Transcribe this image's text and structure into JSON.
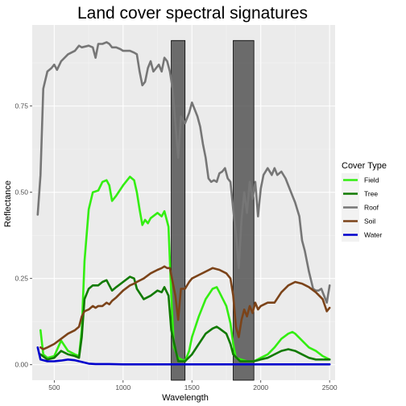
{
  "chart_data": {
    "type": "line",
    "title": "Land cover spectral signatures",
    "xlabel": "Wavelength",
    "ylabel": "Reflectance",
    "xlim": [
      340,
      2540
    ],
    "ylim": [
      -0.045,
      0.985
    ],
    "x_ticks": [
      500,
      1000,
      1500,
      2000,
      2500
    ],
    "y_ticks": [
      0.0,
      0.25,
      0.5,
      0.75
    ],
    "y_tick_labels": [
      "0.00",
      "0.25",
      "0.50",
      "0.75"
    ],
    "grid": true,
    "background": "#ebebeb",
    "legend": {
      "title": "Cover Type",
      "position": "right"
    },
    "shaded_regions": [
      {
        "x_start": 1350,
        "x_end": 1450,
        "y_top": 0.94
      },
      {
        "x_start": 1800,
        "x_end": 1950,
        "y_top": 0.94
      }
    ],
    "series": [
      {
        "name": "Field",
        "color": "#33ee11",
        "points": [
          [
            400,
            0.1
          ],
          [
            420,
            0.03
          ],
          [
            450,
            0.02
          ],
          [
            500,
            0.025
          ],
          [
            550,
            0.07
          ],
          [
            600,
            0.04
          ],
          [
            650,
            0.03
          ],
          [
            680,
            0.025
          ],
          [
            700,
            0.1
          ],
          [
            720,
            0.3
          ],
          [
            750,
            0.45
          ],
          [
            780,
            0.5
          ],
          [
            820,
            0.505
          ],
          [
            850,
            0.53
          ],
          [
            880,
            0.535
          ],
          [
            900,
            0.52
          ],
          [
            920,
            0.475
          ],
          [
            950,
            0.49
          ],
          [
            1000,
            0.52
          ],
          [
            1050,
            0.545
          ],
          [
            1080,
            0.535
          ],
          [
            1100,
            0.5
          ],
          [
            1120,
            0.45
          ],
          [
            1140,
            0.405
          ],
          [
            1160,
            0.42
          ],
          [
            1180,
            0.41
          ],
          [
            1200,
            0.425
          ],
          [
            1250,
            0.44
          ],
          [
            1280,
            0.43
          ],
          [
            1300,
            0.445
          ],
          [
            1330,
            0.4
          ],
          [
            1350,
            0.2
          ],
          [
            1370,
            0.05
          ],
          [
            1400,
            0.02
          ],
          [
            1450,
            0.01
          ],
          [
            1480,
            0.04
          ],
          [
            1500,
            0.08
          ],
          [
            1550,
            0.14
          ],
          [
            1600,
            0.19
          ],
          [
            1650,
            0.22
          ],
          [
            1680,
            0.225
          ],
          [
            1700,
            0.21
          ],
          [
            1750,
            0.17
          ],
          [
            1780,
            0.12
          ],
          [
            1800,
            0.06
          ],
          [
            1820,
            0.02
          ],
          [
            1900,
            0.01
          ],
          [
            1950,
            0.01
          ],
          [
            2000,
            0.02
          ],
          [
            2050,
            0.03
          ],
          [
            2100,
            0.05
          ],
          [
            2150,
            0.075
          ],
          [
            2200,
            0.09
          ],
          [
            2230,
            0.095
          ],
          [
            2250,
            0.09
          ],
          [
            2300,
            0.07
          ],
          [
            2350,
            0.05
          ],
          [
            2400,
            0.04
          ],
          [
            2450,
            0.025
          ],
          [
            2500,
            0.015
          ]
        ]
      },
      {
        "name": "Tree",
        "color": "#117a00",
        "points": [
          [
            400,
            0.03
          ],
          [
            450,
            0.015
          ],
          [
            500,
            0.02
          ],
          [
            550,
            0.04
          ],
          [
            600,
            0.03
          ],
          [
            650,
            0.025
          ],
          [
            680,
            0.02
          ],
          [
            700,
            0.08
          ],
          [
            720,
            0.19
          ],
          [
            750,
            0.22
          ],
          [
            780,
            0.23
          ],
          [
            820,
            0.23
          ],
          [
            850,
            0.24
          ],
          [
            880,
            0.245
          ],
          [
            900,
            0.23
          ],
          [
            920,
            0.215
          ],
          [
            950,
            0.225
          ],
          [
            1000,
            0.24
          ],
          [
            1050,
            0.255
          ],
          [
            1080,
            0.25
          ],
          [
            1100,
            0.22
          ],
          [
            1150,
            0.19
          ],
          [
            1200,
            0.2
          ],
          [
            1250,
            0.215
          ],
          [
            1280,
            0.21
          ],
          [
            1300,
            0.225
          ],
          [
            1330,
            0.2
          ],
          [
            1350,
            0.1
          ],
          [
            1400,
            0.01
          ],
          [
            1450,
            0.01
          ],
          [
            1500,
            0.03
          ],
          [
            1550,
            0.06
          ],
          [
            1600,
            0.09
          ],
          [
            1650,
            0.105
          ],
          [
            1680,
            0.11
          ],
          [
            1700,
            0.105
          ],
          [
            1750,
            0.09
          ],
          [
            1780,
            0.06
          ],
          [
            1800,
            0.03
          ],
          [
            1850,
            0.01
          ],
          [
            1950,
            0.01
          ],
          [
            2000,
            0.015
          ],
          [
            2050,
            0.02
          ],
          [
            2100,
            0.03
          ],
          [
            2150,
            0.04
          ],
          [
            2200,
            0.045
          ],
          [
            2250,
            0.04
          ],
          [
            2300,
            0.03
          ],
          [
            2350,
            0.02
          ],
          [
            2400,
            0.015
          ],
          [
            2500,
            0.015
          ]
        ]
      },
      {
        "name": "Roof",
        "color": "#767676",
        "points": [
          [
            380,
            0.435
          ],
          [
            400,
            0.55
          ],
          [
            420,
            0.8
          ],
          [
            450,
            0.85
          ],
          [
            480,
            0.86
          ],
          [
            500,
            0.87
          ],
          [
            520,
            0.855
          ],
          [
            550,
            0.88
          ],
          [
            600,
            0.9
          ],
          [
            650,
            0.91
          ],
          [
            680,
            0.925
          ],
          [
            700,
            0.92
          ],
          [
            750,
            0.925
          ],
          [
            780,
            0.92
          ],
          [
            800,
            0.89
          ],
          [
            820,
            0.93
          ],
          [
            850,
            0.93
          ],
          [
            880,
            0.935
          ],
          [
            900,
            0.93
          ],
          [
            920,
            0.92
          ],
          [
            950,
            0.92
          ],
          [
            980,
            0.915
          ],
          [
            1000,
            0.91
          ],
          [
            1050,
            0.91
          ],
          [
            1080,
            0.905
          ],
          [
            1100,
            0.9
          ],
          [
            1120,
            0.85
          ],
          [
            1140,
            0.81
          ],
          [
            1160,
            0.82
          ],
          [
            1180,
            0.86
          ],
          [
            1200,
            0.88
          ],
          [
            1220,
            0.85
          ],
          [
            1240,
            0.86
          ],
          [
            1260,
            0.87
          ],
          [
            1280,
            0.85
          ],
          [
            1300,
            0.89
          ],
          [
            1320,
            0.88
          ],
          [
            1340,
            0.85
          ],
          [
            1360,
            0.8
          ],
          [
            1380,
            0.7
          ],
          [
            1400,
            0.6
          ],
          [
            1420,
            0.72
          ],
          [
            1450,
            0.7
          ],
          [
            1480,
            0.73
          ],
          [
            1500,
            0.76
          ],
          [
            1520,
            0.74
          ],
          [
            1540,
            0.72
          ],
          [
            1560,
            0.69
          ],
          [
            1580,
            0.64
          ],
          [
            1600,
            0.6
          ],
          [
            1620,
            0.54
          ],
          [
            1640,
            0.53
          ],
          [
            1660,
            0.535
          ],
          [
            1680,
            0.53
          ],
          [
            1700,
            0.555
          ],
          [
            1720,
            0.56
          ],
          [
            1740,
            0.57
          ],
          [
            1760,
            0.54
          ],
          [
            1780,
            0.53
          ],
          [
            1800,
            0.45
          ],
          [
            1820,
            0.38
          ],
          [
            1840,
            0.28
          ],
          [
            1860,
            0.42
          ],
          [
            1880,
            0.5
          ],
          [
            1900,
            0.44
          ],
          [
            1920,
            0.53
          ],
          [
            1940,
            0.48
          ],
          [
            1960,
            0.53
          ],
          [
            1980,
            0.43
          ],
          [
            2000,
            0.51
          ],
          [
            2020,
            0.55
          ],
          [
            2050,
            0.57
          ],
          [
            2080,
            0.55
          ],
          [
            2100,
            0.57
          ],
          [
            2120,
            0.55
          ],
          [
            2150,
            0.56
          ],
          [
            2180,
            0.54
          ],
          [
            2200,
            0.52
          ],
          [
            2220,
            0.5
          ],
          [
            2250,
            0.47
          ],
          [
            2280,
            0.43
          ],
          [
            2300,
            0.36
          ],
          [
            2320,
            0.33
          ],
          [
            2350,
            0.27
          ],
          [
            2380,
            0.22
          ],
          [
            2400,
            0.215
          ],
          [
            2420,
            0.215
          ],
          [
            2440,
            0.22
          ],
          [
            2460,
            0.2
          ],
          [
            2480,
            0.18
          ],
          [
            2500,
            0.23
          ]
        ]
      },
      {
        "name": "Soil",
        "color": "#7b4319",
        "points": [
          [
            400,
            0.05
          ],
          [
            420,
            0.045
          ],
          [
            450,
            0.05
          ],
          [
            500,
            0.06
          ],
          [
            550,
            0.075
          ],
          [
            600,
            0.09
          ],
          [
            650,
            0.1
          ],
          [
            680,
            0.11
          ],
          [
            700,
            0.14
          ],
          [
            720,
            0.155
          ],
          [
            750,
            0.16
          ],
          [
            780,
            0.17
          ],
          [
            800,
            0.165
          ],
          [
            820,
            0.17
          ],
          [
            850,
            0.17
          ],
          [
            880,
            0.18
          ],
          [
            900,
            0.175
          ],
          [
            920,
            0.185
          ],
          [
            950,
            0.195
          ],
          [
            1000,
            0.215
          ],
          [
            1050,
            0.23
          ],
          [
            1080,
            0.235
          ],
          [
            1100,
            0.24
          ],
          [
            1150,
            0.25
          ],
          [
            1200,
            0.265
          ],
          [
            1250,
            0.275
          ],
          [
            1280,
            0.28
          ],
          [
            1300,
            0.285
          ],
          [
            1320,
            0.28
          ],
          [
            1340,
            0.28
          ],
          [
            1360,
            0.24
          ],
          [
            1380,
            0.2
          ],
          [
            1400,
            0.13
          ],
          [
            1420,
            0.22
          ],
          [
            1450,
            0.22
          ],
          [
            1480,
            0.24
          ],
          [
            1500,
            0.25
          ],
          [
            1550,
            0.26
          ],
          [
            1600,
            0.27
          ],
          [
            1650,
            0.28
          ],
          [
            1700,
            0.275
          ],
          [
            1750,
            0.265
          ],
          [
            1780,
            0.25
          ],
          [
            1800,
            0.2
          ],
          [
            1820,
            0.11
          ],
          [
            1840,
            0.08
          ],
          [
            1860,
            0.13
          ],
          [
            1880,
            0.16
          ],
          [
            1900,
            0.14
          ],
          [
            1920,
            0.17
          ],
          [
            1940,
            0.15
          ],
          [
            1960,
            0.18
          ],
          [
            1980,
            0.16
          ],
          [
            2000,
            0.17
          ],
          [
            2050,
            0.18
          ],
          [
            2100,
            0.18
          ],
          [
            2150,
            0.21
          ],
          [
            2200,
            0.23
          ],
          [
            2250,
            0.24
          ],
          [
            2300,
            0.235
          ],
          [
            2350,
            0.225
          ],
          [
            2400,
            0.21
          ],
          [
            2450,
            0.19
          ],
          [
            2480,
            0.155
          ],
          [
            2500,
            0.165
          ]
        ]
      },
      {
        "name": "Water",
        "color": "#0000cc",
        "points": [
          [
            380,
            0.05
          ],
          [
            400,
            0.015
          ],
          [
            450,
            0.01
          ],
          [
            500,
            0.01
          ],
          [
            550,
            0.012
          ],
          [
            600,
            0.015
          ],
          [
            650,
            0.013
          ],
          [
            700,
            0.008
          ],
          [
            750,
            0.003
          ],
          [
            800,
            0.002
          ],
          [
            900,
            0.002
          ],
          [
            1000,
            0.001
          ],
          [
            1200,
            0.001
          ],
          [
            1400,
            0.001
          ],
          [
            1600,
            0.001
          ],
          [
            1800,
            0.001
          ],
          [
            2000,
            0.001
          ],
          [
            2200,
            0.001
          ],
          [
            2400,
            0.001
          ],
          [
            2500,
            0.001
          ]
        ]
      }
    ]
  }
}
